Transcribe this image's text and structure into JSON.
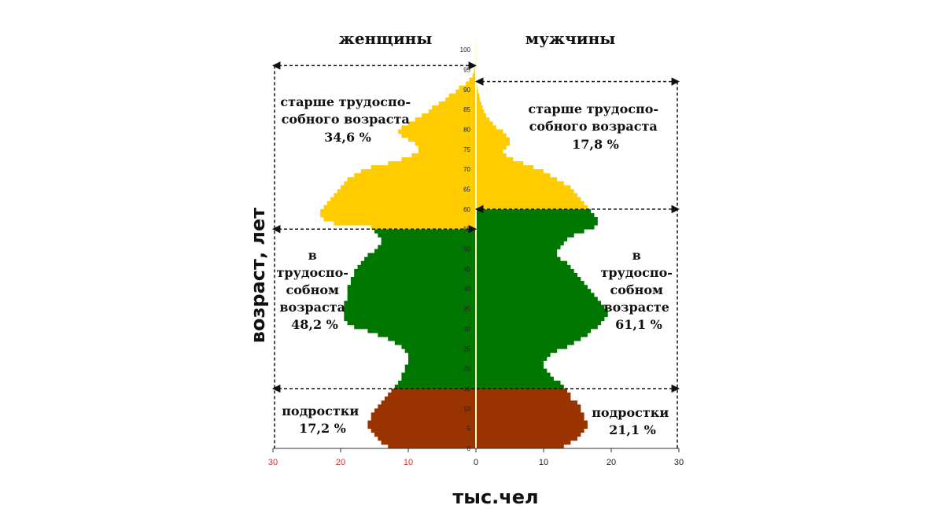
{
  "chart_data": {
    "type": "bar",
    "subtype": "population-pyramid",
    "xlabel": "тыс.чел",
    "ylabel": "возраст, лет",
    "xlim": [
      -30,
      30
    ],
    "x_ticks": [
      {
        "value": -30,
        "label": "30"
      },
      {
        "value": -20,
        "label": "20"
      },
      {
        "value": -10,
        "label": "10"
      },
      {
        "value": 0,
        "label": "0"
      },
      {
        "value": 10,
        "label": "10"
      },
      {
        "value": 20,
        "label": "20"
      },
      {
        "value": 30,
        "label": "30"
      }
    ],
    "y_ticks": [
      "0",
      "5",
      "10",
      "15",
      "20",
      "25",
      "30",
      "35",
      "40",
      "45",
      "50",
      "55",
      "60",
      "65",
      "70",
      "75",
      "80",
      "85",
      "90",
      "95",
      "100"
    ],
    "ylim": [
      0,
      100
    ],
    "colors": {
      "teen": "#993300",
      "working": "#007700",
      "older": "#ffcc00",
      "x_tick_left": "#cc3333",
      "x_tick_right": "#222222",
      "center_line": "#ffffcc"
    },
    "age_bands": {
      "female": {
        "teen_max": 15,
        "working_max": 55
      },
      "male": {
        "teen_max": 15,
        "working_max": 60
      }
    },
    "female_by_age": [
      13,
      14,
      14.5,
      15,
      15.5,
      16,
      16,
      15.5,
      15.5,
      15,
      14.5,
      14,
      13.5,
      13,
      12.5,
      12,
      11.5,
      11,
      11,
      10.5,
      10.5,
      10,
      10,
      10,
      10.5,
      11,
      12,
      13,
      14.5,
      16,
      18,
      19,
      19.5,
      19.5,
      19.5,
      19.5,
      19.5,
      19,
      19,
      19,
      19,
      18.5,
      18.5,
      18,
      18,
      17.5,
      17,
      16.5,
      16,
      15,
      14.5,
      14,
      14,
      14.5,
      15,
      15.5,
      21,
      22.5,
      23,
      23,
      22.5,
      22,
      21.5,
      21,
      20.5,
      20,
      19.5,
      19,
      18,
      17,
      15.5,
      13,
      11,
      9.5,
      8.5,
      8.5,
      9,
      10,
      11,
      11.5,
      11,
      10,
      9,
      8,
      7,
      6.5,
      5.5,
      4.5,
      4,
      3,
      2.5,
      1.5,
      1,
      0.5,
      0.3,
      0.2,
      0,
      0,
      0,
      0,
      0
    ],
    "male_by_age": [
      13,
      14,
      15,
      15.5,
      16,
      16.5,
      16.5,
      16,
      16,
      15.5,
      15.5,
      15,
      14,
      14,
      13.5,
      13,
      12.5,
      11.5,
      11,
      10.5,
      10,
      10,
      10.5,
      11,
      12,
      13.5,
      14.5,
      15.5,
      16.5,
      17,
      18,
      18.5,
      19,
      19.5,
      19.5,
      19,
      18.5,
      18,
      17.5,
      17,
      16.5,
      16,
      15.5,
      15,
      14.5,
      14,
      13.5,
      12.5,
      12,
      12,
      12.5,
      13,
      13.5,
      14.5,
      16,
      17.5,
      18,
      18,
      17.5,
      17,
      16.5,
      16,
      15.5,
      15,
      14.5,
      14,
      13,
      12,
      11,
      10,
      8.5,
      7,
      5.5,
      4.5,
      4,
      4.5,
      5,
      5,
      4.5,
      4,
      3,
      2.5,
      2,
      1.5,
      1.2,
      1,
      0.8,
      0.6,
      0.5,
      0.3,
      0.2,
      0.1,
      0.1,
      0,
      0,
      0,
      0,
      0,
      0,
      0
    ],
    "annotations": {
      "header_female": "женщины",
      "header_male": "мужчины",
      "female_older": [
        "старше трудоспо-",
        "собного возраста",
        "34,6 %"
      ],
      "male_older": [
        "старше трудоспо-",
        "собного возраста",
        "17,8 %"
      ],
      "female_working": [
        "в",
        "трудоспо-",
        "собном",
        "возраста",
        "48,2 %"
      ],
      "male_working": [
        "в",
        "трудоспо-",
        "собном",
        "возрасте",
        "61,1 %"
      ],
      "female_teen": [
        "подростки",
        "17,2 %"
      ],
      "male_teen": [
        "подростки",
        "21,1 %"
      ]
    }
  }
}
